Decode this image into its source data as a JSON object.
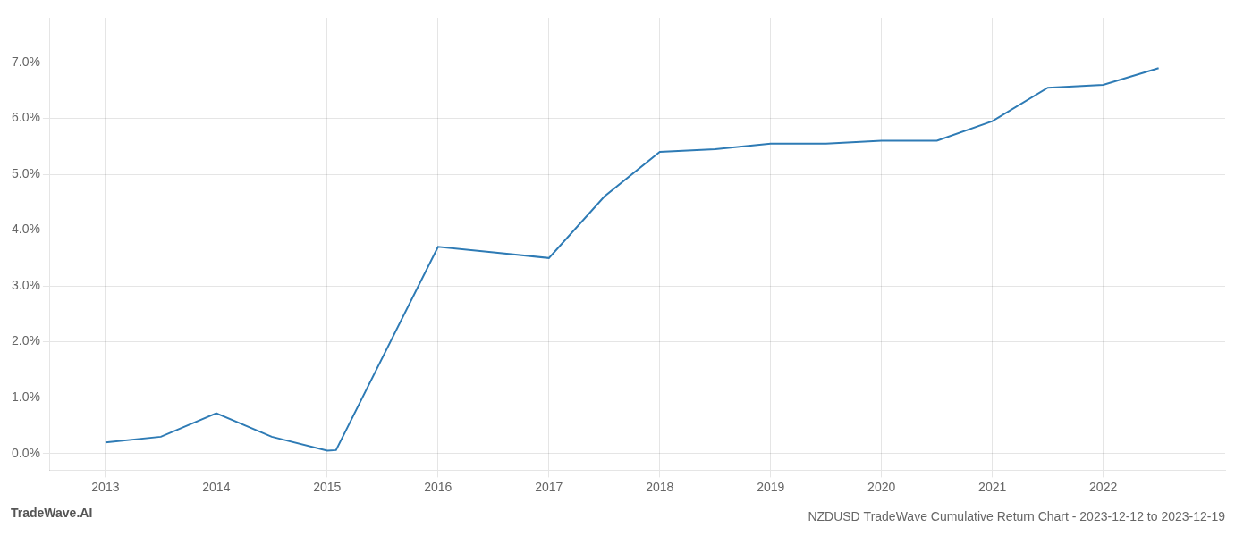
{
  "chart_data": {
    "type": "line",
    "title": "NZDUSD TradeWave Cumulative Return Chart - 2023-12-12 to 2023-12-19",
    "annotations": [
      "TradeWave.AI"
    ],
    "x": [
      2013,
      2013.5,
      2014,
      2014.5,
      2015,
      2015.08,
      2016,
      2016.5,
      2017,
      2017.5,
      2018,
      2018.5,
      2019,
      2019.5,
      2020,
      2020.5,
      2021,
      2021.5,
      2022,
      2022.5
    ],
    "values": [
      0.002,
      0.003,
      0.0072,
      0.003,
      0.0005,
      0.0006,
      0.037,
      0.036,
      0.035,
      0.046,
      0.054,
      0.0545,
      0.0555,
      0.0555,
      0.056,
      0.056,
      0.0595,
      0.0655,
      0.066,
      0.069
    ],
    "color": "#2e7bb5",
    "xlim": [
      2012.5,
      2023.1
    ],
    "ylim": [
      -0.003,
      0.078
    ],
    "xticks": [
      2013,
      2014,
      2015,
      2016,
      2017,
      2018,
      2019,
      2020,
      2021,
      2022
    ],
    "yticks": [
      {
        "value": 0.0,
        "label": "0.0%"
      },
      {
        "value": 0.01,
        "label": "1.0%"
      },
      {
        "value": 0.02,
        "label": "2.0%"
      },
      {
        "value": 0.03,
        "label": "3.0%"
      },
      {
        "value": 0.04,
        "label": "4.0%"
      },
      {
        "value": 0.05,
        "label": "5.0%"
      },
      {
        "value": 0.06,
        "label": "6.0%"
      },
      {
        "value": 0.07,
        "label": "7.0%"
      }
    ],
    "grid": true
  }
}
